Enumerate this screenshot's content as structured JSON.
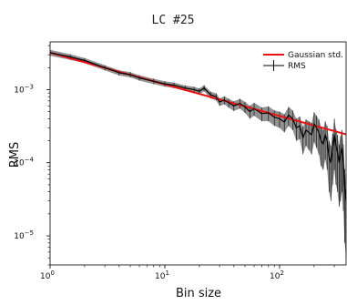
{
  "chart_data": {
    "type": "line",
    "title": "LC #25",
    "xlabel": "Bin size",
    "ylabel": "RMS",
    "xscale": "log",
    "yscale": "log",
    "xlim": [
      1,
      380
    ],
    "ylim": [
      4e-06,
      0.0045
    ],
    "grid": false,
    "legend_position": "top-right",
    "x_ticks": [
      {
        "value": 1,
        "base": "10",
        "exp": "0"
      },
      {
        "value": 10,
        "base": "10",
        "exp": "1"
      },
      {
        "value": 100,
        "base": "10",
        "exp": "2"
      }
    ],
    "y_ticks": [
      {
        "value": 1e-05,
        "base": "10",
        "exp": "−5"
      },
      {
        "value": 0.0001,
        "base": "10",
        "exp": "−4"
      },
      {
        "value": 0.001,
        "base": "10",
        "exp": "−3"
      }
    ],
    "series": [
      {
        "name": "Gaussian std.",
        "color": "#ee1111",
        "style": "line",
        "x": [
          1,
          380
        ],
        "y": [
          0.0032,
          0.000245
        ]
      },
      {
        "name": "RMS",
        "color": "#000000",
        "error_color": "#7f7f7f",
        "style": "errorbar",
        "x": [
          1,
          1.5,
          2,
          3,
          4,
          5,
          6,
          8,
          10,
          12,
          15,
          18,
          20,
          22,
          25,
          28,
          30,
          33,
          36,
          40,
          45,
          50,
          55,
          60,
          70,
          80,
          90,
          100,
          110,
          120,
          130,
          140,
          150,
          160,
          170,
          180,
          190,
          200,
          210,
          220,
          230,
          240,
          250,
          260,
          270,
          280,
          290,
          300,
          310,
          320,
          330,
          340,
          350,
          360,
          370,
          380
        ],
        "y": [
          0.0032,
          0.0028,
          0.0025,
          0.002,
          0.0017,
          0.0016,
          0.00145,
          0.0013,
          0.0012,
          0.00115,
          0.00105,
          0.001,
          0.00095,
          0.00105,
          0.00085,
          0.0008,
          0.00068,
          0.00072,
          0.00066,
          0.0006,
          0.00065,
          0.00058,
          0.0005,
          0.00055,
          0.00047,
          0.00048,
          0.00042,
          0.0004,
          0.00036,
          0.00045,
          0.0004,
          0.0003,
          0.00032,
          0.00022,
          0.00028,
          0.00026,
          0.00024,
          0.00034,
          0.0003,
          0.00026,
          0.0002,
          0.00018,
          0.00024,
          0.0002,
          0.00012,
          0.0001,
          0.00015,
          0.00024,
          0.00017,
          0.00014,
          0.0001,
          0.00013,
          0.00016,
          0.0001,
          4.5e-05,
          3e-05
        ],
        "yerr_lower": [
          0.0003,
          0.00025,
          0.0002,
          0.00016,
          0.00014,
          0.00013,
          0.00012,
          0.00011,
          0.0001,
          0.0001,
          9e-05,
          9e-05,
          9e-05,
          0.0001,
          9e-05,
          9e-05,
          8e-05,
          9e-05,
          9e-05,
          9e-05,
          0.0001,
          0.0001,
          0.0001,
          0.00011,
          0.0001,
          0.00011,
          0.0001,
          0.0001,
          0.0001,
          0.00013,
          0.00012,
          0.0001,
          0.00011,
          9e-05,
          0.00011,
          0.00011,
          0.00011,
          0.00015,
          0.00014,
          0.00013,
          0.00011,
          0.0001,
          0.00013,
          0.00012,
          8e-05,
          7e-05,
          0.0001,
          0.00016,
          0.00012,
          0.0001,
          7.5e-05,
          0.0001,
          0.00012,
          7.8e-05,
          3.7e-05,
          2.5e-05
        ],
        "yerr_upper": [
          0.0003,
          0.00025,
          0.0002,
          0.00016,
          0.00014,
          0.00013,
          0.00012,
          0.00011,
          0.0001,
          0.0001,
          9e-05,
          9e-05,
          9e-05,
          0.0001,
          9e-05,
          9e-05,
          8e-05,
          9e-05,
          9e-05,
          9e-05,
          0.0001,
          0.0001,
          0.0001,
          0.00011,
          0.0001,
          0.00011,
          0.0001,
          0.0001,
          0.0001,
          0.00013,
          0.00012,
          0.0001,
          0.00011,
          9e-05,
          0.00011,
          0.00011,
          0.00011,
          0.00015,
          0.00014,
          0.00013,
          0.00011,
          0.0001,
          0.00013,
          0.00012,
          8e-05,
          7e-05,
          0.0001,
          0.00016,
          0.00012,
          0.0001,
          7.5e-05,
          0.0001,
          0.00012,
          7.8e-05,
          3.7e-05,
          2.5e-05
        ]
      }
    ]
  }
}
